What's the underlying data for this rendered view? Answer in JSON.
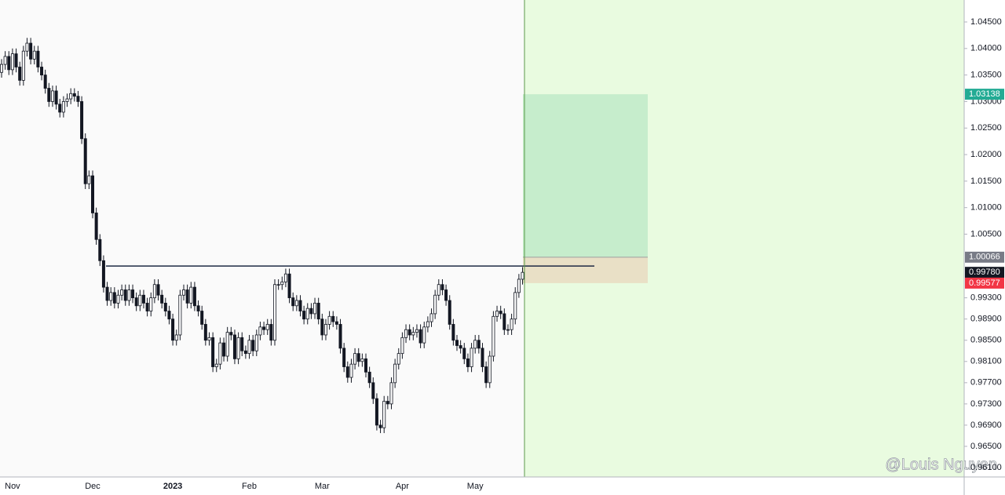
{
  "chart_data": {
    "type": "candlestick",
    "categories": [
      null,
      null,
      null,
      "Nov",
      null,
      null,
      null,
      null,
      null,
      null,
      null,
      null,
      null,
      null,
      null,
      null,
      null,
      null,
      null,
      null,
      null,
      null,
      null,
      null,
      null,
      "Dec",
      null,
      null,
      null,
      null,
      null,
      null,
      null,
      null,
      null,
      null,
      null,
      null,
      null,
      null,
      null,
      null,
      null,
      null,
      null,
      null,
      null,
      "2023",
      null,
      null,
      null,
      null,
      null,
      null,
      null,
      null,
      null,
      null,
      null,
      null,
      null,
      null,
      null,
      null,
      null,
      null,
      null,
      null,
      "Feb",
      null,
      null,
      null,
      null,
      null,
      null,
      null,
      null,
      null,
      null,
      null,
      null,
      null,
      null,
      null,
      null,
      null,
      null,
      null,
      "Mar",
      null,
      null,
      null,
      null,
      null,
      null,
      null,
      null,
      null,
      null,
      null,
      null,
      null,
      null,
      null,
      null,
      null,
      null,
      null,
      null,
      null,
      "Apr",
      null,
      null,
      null,
      null,
      null,
      null,
      null,
      null,
      null,
      null,
      null,
      null,
      null,
      null,
      null,
      null,
      null,
      null,
      null,
      "May",
      null,
      null,
      null,
      null,
      null,
      null,
      null,
      null,
      null,
      null,
      null,
      null,
      null
    ],
    "open": [
      1.0355,
      1.037,
      1.0385,
      1.036,
      1.039,
      1.0365,
      1.034,
      1.0395,
      1.041,
      1.038,
      1.0395,
      1.0365,
      1.035,
      1.0325,
      1.03,
      1.032,
      1.0295,
      1.028,
      1.03,
      1.0305,
      1.0315,
      1.031,
      1.03,
      1.023,
      1.0145,
      1.016,
      1.009,
      1.004,
      1.0,
      0.995,
      0.9925,
      0.994,
      0.992,
      0.9935,
      0.9945,
      0.9925,
      0.9945,
      0.993,
      0.9915,
      0.9935,
      0.992,
      0.9905,
      0.993,
      0.9955,
      0.9935,
      0.992,
      0.9905,
      0.989,
      0.985,
      0.986,
      0.9935,
      0.9945,
      0.992,
      0.995,
      0.9915,
      0.9905,
      0.988,
      0.985,
      0.9855,
      0.98,
      0.9805,
      0.9845,
      0.982,
      0.9865,
      0.986,
      0.9815,
      0.9855,
      0.983,
      0.9825,
      0.985,
      0.983,
      0.986,
      0.9875,
      0.987,
      0.988,
      0.985,
      0.9955,
      0.9955,
      0.996,
      0.9975,
      0.993,
      0.9915,
      0.9925,
      0.9905,
      0.989,
      0.991,
      0.99,
      0.992,
      0.989,
      0.986,
      0.988,
      0.9895,
      0.9885,
      0.988,
      0.9835,
      0.98,
      0.978,
      0.9805,
      0.9825,
      0.981,
      0.9815,
      0.979,
      0.977,
      0.974,
      0.969,
      0.9685,
      0.9735,
      0.973,
      0.977,
      0.9805,
      0.9825,
      0.9855,
      0.987,
      0.986,
      0.9865,
      0.987,
      0.9845,
      0.9875,
      0.9885,
      0.99,
      0.9935,
      0.9955,
      0.9945,
      0.9925,
      0.988,
      0.985,
      0.984,
      0.9835,
      0.9815,
      0.98,
      0.9835,
      0.985,
      0.9835,
      0.98,
      0.977,
      0.982,
      0.9895,
      0.9905,
      0.99,
      0.987,
      0.987,
      0.989,
      0.994,
      0.9965
    ],
    "high": [
      1.038,
      1.0395,
      1.0395,
      1.04,
      1.04,
      1.0375,
      1.0405,
      1.042,
      1.042,
      1.0405,
      1.0405,
      1.0375,
      1.036,
      1.0335,
      1.033,
      1.033,
      1.0305,
      1.031,
      1.0315,
      1.0325,
      1.0325,
      1.032,
      1.031,
      1.024,
      1.017,
      1.017,
      1.01,
      1.005,
      1.001,
      0.996,
      0.995,
      0.995,
      0.9945,
      0.9955,
      0.9955,
      0.9955,
      0.9955,
      0.994,
      0.9945,
      0.9945,
      0.993,
      0.994,
      0.9965,
      0.9965,
      0.9945,
      0.993,
      0.9915,
      0.99,
      0.987,
      0.9945,
      0.9955,
      0.9955,
      0.996,
      0.996,
      0.9925,
      0.9915,
      0.989,
      0.9865,
      0.9865,
      0.9815,
      0.9855,
      0.9855,
      0.9875,
      0.9875,
      0.987,
      0.9865,
      0.9865,
      0.984,
      0.986,
      0.986,
      0.987,
      0.9885,
      0.9885,
      0.989,
      0.989,
      0.9965,
      0.9965,
      0.997,
      0.9985,
      0.9985,
      0.994,
      0.9935,
      0.9935,
      0.9915,
      0.992,
      0.992,
      0.993,
      0.993,
      0.99,
      0.989,
      0.9905,
      0.9905,
      0.9895,
      0.989,
      0.9845,
      0.981,
      0.9815,
      0.9835,
      0.9835,
      0.9825,
      0.9825,
      0.98,
      0.978,
      0.975,
      0.97,
      0.9745,
      0.9745,
      0.978,
      0.9815,
      0.9835,
      0.9865,
      0.988,
      0.988,
      0.9875,
      0.988,
      0.988,
      0.9885,
      0.9895,
      0.991,
      0.9945,
      0.9965,
      0.9965,
      0.9955,
      0.9935,
      0.989,
      0.986,
      0.985,
      0.9845,
      0.9825,
      0.9845,
      0.986,
      0.986,
      0.9845,
      0.981,
      0.983,
      0.9905,
      0.9915,
      0.9915,
      0.991,
      0.988,
      0.99,
      0.995,
      0.9975,
      0.9988
    ],
    "low": [
      1.0345,
      1.036,
      1.035,
      1.035,
      1.0355,
      1.033,
      1.033,
      1.0385,
      1.037,
      1.037,
      1.0355,
      1.034,
      1.0315,
      1.029,
      1.029,
      1.0285,
      1.027,
      1.027,
      1.029,
      1.0295,
      1.03,
      1.029,
      1.022,
      1.0135,
      1.0135,
      1.008,
      1.003,
      0.999,
      0.994,
      0.9915,
      0.9915,
      0.991,
      0.991,
      0.9925,
      0.9915,
      0.9915,
      0.992,
      0.9905,
      0.9905,
      0.991,
      0.9895,
      0.9895,
      0.992,
      0.9925,
      0.991,
      0.9895,
      0.988,
      0.984,
      0.984,
      0.985,
      0.9925,
      0.991,
      0.991,
      0.9905,
      0.9895,
      0.987,
      0.984,
      0.984,
      0.979,
      0.979,
      0.9795,
      0.981,
      0.981,
      0.985,
      0.9805,
      0.9805,
      0.982,
      0.9815,
      0.9815,
      0.982,
      0.982,
      0.985,
      0.986,
      0.986,
      0.984,
      0.984,
      0.9945,
      0.9945,
      0.995,
      0.992,
      0.9905,
      0.9905,
      0.9895,
      0.988,
      0.988,
      0.989,
      0.989,
      0.988,
      0.985,
      0.985,
      0.987,
      0.9875,
      0.987,
      0.9825,
      0.979,
      0.977,
      0.977,
      0.9795,
      0.98,
      0.98,
      0.978,
      0.976,
      0.973,
      0.968,
      0.9675,
      0.9675,
      0.972,
      0.972,
      0.976,
      0.9795,
      0.9815,
      0.9845,
      0.985,
      0.985,
      0.9855,
      0.9835,
      0.9835,
      0.9865,
      0.9875,
      0.989,
      0.9925,
      0.9935,
      0.9915,
      0.987,
      0.984,
      0.983,
      0.9825,
      0.9805,
      0.979,
      0.979,
      0.9825,
      0.9825,
      0.979,
      0.976,
      0.976,
      0.981,
      0.9885,
      0.989,
      0.986,
      0.986,
      0.986,
      0.988,
      0.993,
      0.9955
    ],
    "close": [
      1.037,
      1.0385,
      1.036,
      1.039,
      1.0365,
      1.034,
      1.0395,
      1.041,
      1.038,
      1.0395,
      1.0365,
      1.035,
      1.0325,
      1.03,
      1.032,
      1.0295,
      1.028,
      1.03,
      1.0305,
      1.0315,
      1.031,
      1.03,
      1.023,
      1.0145,
      1.016,
      1.009,
      1.004,
      1.0,
      0.995,
      0.9925,
      0.994,
      0.992,
      0.9935,
      0.9945,
      0.9925,
      0.9945,
      0.993,
      0.9915,
      0.9935,
      0.992,
      0.9905,
      0.993,
      0.9955,
      0.9935,
      0.992,
      0.9905,
      0.989,
      0.985,
      0.986,
      0.9935,
      0.9945,
      0.992,
      0.995,
      0.9915,
      0.9905,
      0.988,
      0.985,
      0.9855,
      0.98,
      0.9805,
      0.9845,
      0.982,
      0.9865,
      0.986,
      0.9815,
      0.9855,
      0.983,
      0.9825,
      0.985,
      0.983,
      0.986,
      0.9875,
      0.987,
      0.988,
      0.985,
      0.9955,
      0.9955,
      0.996,
      0.9975,
      0.993,
      0.9915,
      0.9925,
      0.9905,
      0.989,
      0.991,
      0.99,
      0.992,
      0.989,
      0.986,
      0.988,
      0.9895,
      0.9885,
      0.988,
      0.9835,
      0.98,
      0.978,
      0.9805,
      0.9825,
      0.981,
      0.9815,
      0.979,
      0.977,
      0.974,
      0.969,
      0.9685,
      0.9735,
      0.973,
      0.977,
      0.9805,
      0.9825,
      0.9855,
      0.987,
      0.986,
      0.9865,
      0.987,
      0.9845,
      0.9875,
      0.9885,
      0.99,
      0.9935,
      0.9955,
      0.9945,
      0.9925,
      0.988,
      0.985,
      0.984,
      0.9835,
      0.9815,
      0.98,
      0.9835,
      0.985,
      0.9835,
      0.98,
      0.977,
      0.982,
      0.9895,
      0.9905,
      0.99,
      0.987,
      0.987,
      0.989,
      0.994,
      0.9965,
      0.9978
    ],
    "ylim": [
      0.95923,
      1.04914
    ],
    "yticks": [
      {
        "value": 1.045,
        "label": "1.04500"
      },
      {
        "value": 1.04,
        "label": "1.04000"
      },
      {
        "value": 1.035,
        "label": "1.03500"
      },
      {
        "value": 1.03,
        "label": "1.03000"
      },
      {
        "value": 1.025,
        "label": "1.02500"
      },
      {
        "value": 1.02,
        "label": "1.02000"
      },
      {
        "value": 1.015,
        "label": "1.01500"
      },
      {
        "value": 1.01,
        "label": "1.01000"
      },
      {
        "value": 1.005,
        "label": "1.00500"
      },
      {
        "value": 0.993,
        "label": "0.99300"
      },
      {
        "value": 0.989,
        "label": "0.98900"
      },
      {
        "value": 0.985,
        "label": "0.98500"
      },
      {
        "value": 0.981,
        "label": "0.98100"
      },
      {
        "value": 0.977,
        "label": "0.97700"
      },
      {
        "value": 0.973,
        "label": "0.97300"
      },
      {
        "value": 0.969,
        "label": "0.96900"
      },
      {
        "value": 0.965,
        "label": "0.96500"
      },
      {
        "value": 0.961,
        "label": "0.96100"
      }
    ],
    "level": 0.999,
    "position": {
      "target": 1.03138,
      "entry": 1.00066,
      "stop": 0.99577
    },
    "last_price": {
      "value": 0.9978,
      "label": "0.99780"
    },
    "up_color": "#ffffff",
    "down_color": "#131722",
    "watermark": "@Louis Nguyen"
  }
}
